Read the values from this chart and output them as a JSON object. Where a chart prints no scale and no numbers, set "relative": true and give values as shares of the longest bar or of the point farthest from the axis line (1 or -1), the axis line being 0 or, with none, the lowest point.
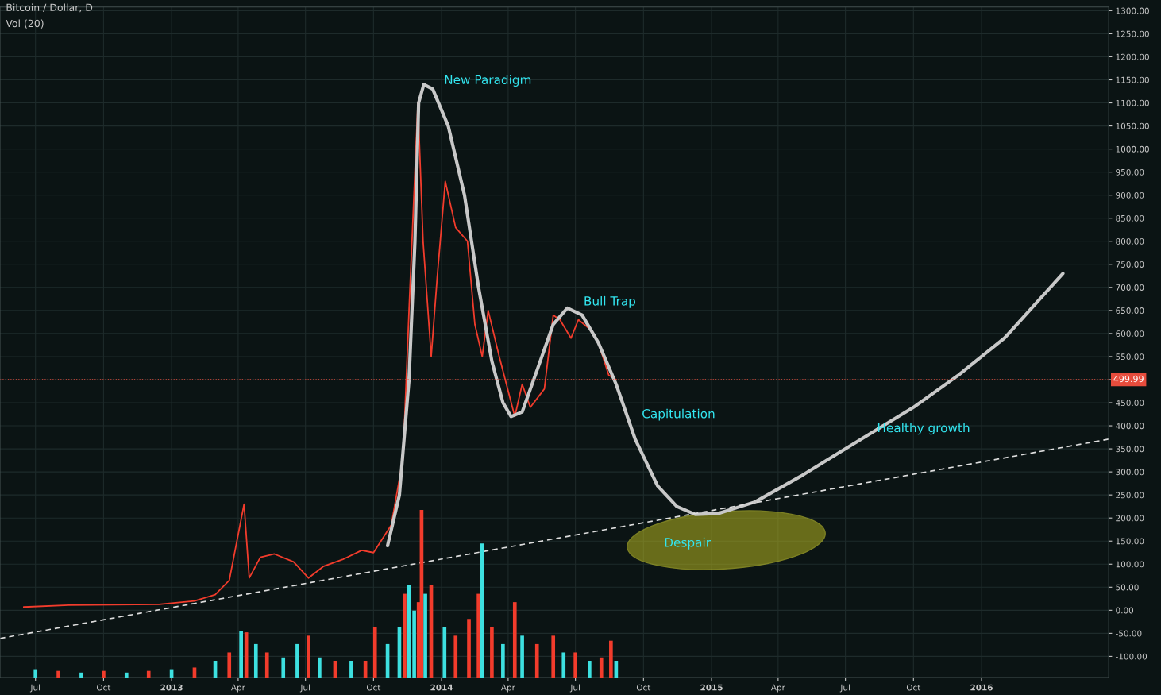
{
  "chart_data": [
    {
      "type": "line",
      "title": "Bitcoin / Dollar, D",
      "subtitle": "Vol (20)",
      "xlim": [
        "2012-05-14",
        "2016-06-21"
      ],
      "xticks": [
        {
          "value": "2012-07-01",
          "label": "Jul"
        },
        {
          "value": "2012-10-01",
          "label": "Oct"
        },
        {
          "value": "2013-01-01",
          "label": "2013"
        },
        {
          "value": "2013-04-01",
          "label": "Apr"
        },
        {
          "value": "2013-07-01",
          "label": "Jul"
        },
        {
          "value": "2013-10-01",
          "label": "Oct"
        },
        {
          "value": "2014-01-01",
          "label": "2014"
        },
        {
          "value": "2014-04-01",
          "label": "Apr"
        },
        {
          "value": "2014-07-01",
          "label": "Jul"
        },
        {
          "value": "2014-10-01",
          "label": "Oct"
        },
        {
          "value": "2015-01-01",
          "label": "2015"
        },
        {
          "value": "2015-04-01",
          "label": "Apr"
        },
        {
          "value": "2015-07-01",
          "label": "Jul"
        },
        {
          "value": "2015-10-01",
          "label": "Oct"
        },
        {
          "value": "2016-01-01",
          "label": "2016"
        }
      ],
      "ylim": [
        -146,
        1308
      ],
      "yticks": [
        {
          "value": -100,
          "label": "-100.00"
        },
        {
          "value": -50,
          "label": "-50.00"
        },
        {
          "value": 0,
          "label": "0.00"
        },
        {
          "value": 50,
          "label": "50.00"
        },
        {
          "value": 100,
          "label": "100.00"
        },
        {
          "value": 150,
          "label": "150.00"
        },
        {
          "value": 200,
          "label": "200.00"
        },
        {
          "value": 250,
          "label": "250.00"
        },
        {
          "value": 300,
          "label": "300.00"
        },
        {
          "value": 350,
          "label": "350.00"
        },
        {
          "value": 400,
          "label": "400.00"
        },
        {
          "value": 450,
          "label": "450.00"
        },
        {
          "value": 500,
          "label": null
        },
        {
          "value": 550,
          "label": "550.00"
        },
        {
          "value": 600,
          "label": "600.00"
        },
        {
          "value": 650,
          "label": "650.00"
        },
        {
          "value": 700,
          "label": "700.00"
        },
        {
          "value": 750,
          "label": "750.00"
        },
        {
          "value": 800,
          "label": "800.00"
        },
        {
          "value": 850,
          "label": "850.00"
        },
        {
          "value": 900,
          "label": "900.00"
        },
        {
          "value": 950,
          "label": "950.00"
        },
        {
          "value": 1000,
          "label": "1000.00"
        },
        {
          "value": 1050,
          "label": "1050.00"
        },
        {
          "value": 1100,
          "label": "1100.00"
        },
        {
          "value": 1150,
          "label": "1150.00"
        },
        {
          "value": 1200,
          "label": "1200.00"
        },
        {
          "value": 1250,
          "label": "1250.00"
        },
        {
          "value": 1300,
          "label": "1300.00"
        }
      ],
      "grid": true,
      "ref_lines": [
        {
          "axis": "y",
          "value": 499.99,
          "label": "499.99",
          "color": "#e74c3c",
          "line_style": "dotted"
        }
      ],
      "annotations": [
        "New Paradigm",
        "Bull Trap",
        "Capitulation",
        "Despair",
        "Healthy growth"
      ],
      "series": [
        {
          "color": "#f23c2c",
          "line_style": "solid",
          "x": [
            "2012-06-15",
            "2012-08-15",
            "2012-10-15",
            "2012-12-15",
            "2013-02-01",
            "2013-03-01",
            "2013-03-20",
            "2013-04-09",
            "2013-04-16",
            "2013-05-01",
            "2013-05-20",
            "2013-06-15",
            "2013-07-05",
            "2013-07-25",
            "2013-08-20",
            "2013-09-15",
            "2013-10-01",
            "2013-10-25",
            "2013-11-10",
            "2013-11-18",
            "2013-11-30",
            "2013-12-07",
            "2013-12-18",
            "2013-12-26",
            "2014-01-06",
            "2014-01-20",
            "2014-02-05",
            "2014-02-15",
            "2014-02-25",
            "2014-03-05",
            "2014-03-20",
            "2014-04-10",
            "2014-04-20",
            "2014-05-01",
            "2014-05-20",
            "2014-06-01",
            "2014-06-10",
            "2014-06-25",
            "2014-07-05",
            "2014-07-20",
            "2014-08-01",
            "2014-08-15",
            "2014-08-25"
          ],
          "values": [
            7,
            11,
            12,
            13,
            20,
            34,
            65,
            230,
            70,
            115,
            122,
            105,
            70,
            95,
            110,
            130,
            125,
            185,
            330,
            650,
            1100,
            800,
            550,
            720,
            930,
            830,
            800,
            620,
            550,
            650,
            550,
            420,
            490,
            440,
            480,
            640,
            630,
            590,
            630,
            610,
            580,
            510,
            500
          ]
        },
        {
          "color": "#c8c8c8",
          "line_style": "solid",
          "x": [
            "2013-10-20",
            "2013-11-05",
            "2013-11-18",
            "2013-11-26",
            "2013-12-01",
            "2013-12-08",
            "2013-12-20",
            "2014-01-10",
            "2014-02-01",
            "2014-02-20",
            "2014-03-10",
            "2014-03-25",
            "2014-04-05",
            "2014-04-20",
            "2014-05-10",
            "2014-06-01",
            "2014-06-20",
            "2014-07-10",
            "2014-08-01",
            "2014-08-25",
            "2014-09-20",
            "2014-10-20",
            "2014-11-15",
            "2014-12-10",
            "2015-01-10",
            "2015-03-01",
            "2015-05-01",
            "2015-07-01",
            "2015-10-01",
            "2015-12-01",
            "2016-02-01",
            "2016-04-20"
          ],
          "values": [
            140,
            250,
            500,
            800,
            1100,
            1140,
            1130,
            1050,
            900,
            700,
            540,
            450,
            420,
            430,
            520,
            620,
            655,
            640,
            580,
            490,
            370,
            270,
            225,
            208,
            210,
            235,
            290,
            350,
            440,
            510,
            590,
            730
          ]
        },
        {
          "color": "#dddddd",
          "line_style": "dashed",
          "x": [
            "2012-05-14",
            "2016-06-21"
          ],
          "values": [
            -61,
            371
          ]
        }
      ]
    },
    {
      "type": "bar",
      "relative": true,
      "tick_labels": false,
      "xlim": [
        "2012-05-14",
        "2016-06-21"
      ],
      "x": [
        "2012-07-01",
        "2012-08-01",
        "2012-09-01",
        "2012-10-01",
        "2012-11-01",
        "2012-12-01",
        "2013-01-01",
        "2013-02-01",
        "2013-03-01",
        "2013-03-20",
        "2013-04-05",
        "2013-04-12",
        "2013-04-25",
        "2013-05-10",
        "2013-06-01",
        "2013-06-20",
        "2013-07-05",
        "2013-07-20",
        "2013-08-10",
        "2013-09-01",
        "2013-09-20",
        "2013-10-03",
        "2013-10-20",
        "2013-11-05",
        "2013-11-12",
        "2013-11-18",
        "2013-11-25",
        "2013-12-01",
        "2013-12-05",
        "2013-12-10",
        "2013-12-18",
        "2014-01-05",
        "2014-01-20",
        "2014-02-07",
        "2014-02-20",
        "2014-02-25",
        "2014-03-10",
        "2014-03-25",
        "2014-04-10",
        "2014-04-20",
        "2014-05-10",
        "2014-06-01",
        "2014-06-15",
        "2014-07-01",
        "2014-07-20",
        "2014-08-05",
        "2014-08-18",
        "2014-08-25"
      ],
      "values": [
        0.05,
        0.04,
        0.03,
        0.04,
        0.03,
        0.04,
        0.05,
        0.06,
        0.1,
        0.15,
        0.28,
        0.27,
        0.2,
        0.15,
        0.12,
        0.2,
        0.25,
        0.12,
        0.1,
        0.1,
        0.1,
        0.3,
        0.2,
        0.3,
        0.5,
        0.55,
        0.4,
        0.45,
        1.0,
        0.5,
        0.55,
        0.3,
        0.25,
        0.35,
        0.5,
        0.8,
        0.3,
        0.2,
        0.45,
        0.25,
        0.2,
        0.25,
        0.15,
        0.15,
        0.1,
        0.12,
        0.22,
        0.1
      ],
      "colors": [
        "#3de0e0",
        "#f23c2c",
        "#3de0e0",
        "#f23c2c",
        "#3de0e0",
        "#f23c2c",
        "#3de0e0",
        "#f23c2c",
        "#3de0e0",
        "#f23c2c",
        "#3de0e0",
        "#f23c2c",
        "#3de0e0",
        "#f23c2c",
        "#3de0e0",
        "#3de0e0",
        "#f23c2c",
        "#3de0e0",
        "#f23c2c",
        "#3de0e0",
        "#f23c2c",
        "#f23c2c",
        "#3de0e0",
        "#3de0e0",
        "#f23c2c",
        "#3de0e0",
        "#3de0e0",
        "#f23c2c",
        "#f23c2c",
        "#3de0e0",
        "#f23c2c",
        "#3de0e0",
        "#f23c2c",
        "#f23c2c",
        "#f23c2c",
        "#3de0e0",
        "#f23c2c",
        "#3de0e0",
        "#f23c2c",
        "#3de0e0",
        "#f23c2c",
        "#f23c2c",
        "#3de0e0",
        "#f23c2c",
        "#3de0e0",
        "#f23c2c",
        "#f23c2c",
        "#3de0e0"
      ]
    }
  ]
}
